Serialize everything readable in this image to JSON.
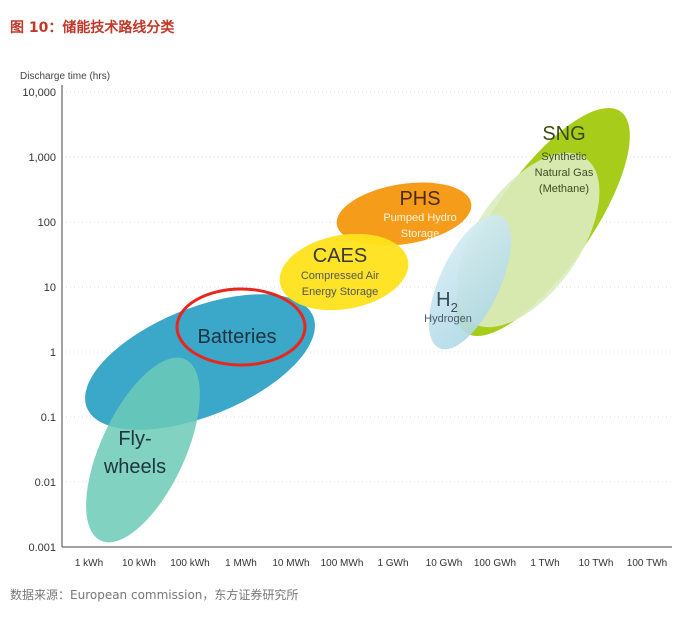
{
  "figure_title": "图 10：储能技术路线分类",
  "source_note": "数据来源：European commission，东方证券研究所",
  "chart_data": {
    "type": "scatter",
    "ylabel": "Discharge time (hrs)",
    "y_scale": "log",
    "x_scale": "log",
    "yticks": [
      "10,000",
      "1,000",
      "100",
      "10",
      "1",
      "0.1",
      "0.01",
      "0.001"
    ],
    "xticks": [
      "1 kWh",
      "10 kWh",
      "100 kWh",
      "1 MWh",
      "10 MWh",
      "100 MWh",
      "1 GWh",
      "10 GWh",
      "100 GWh",
      "1 TWh",
      "10 TWh",
      "100 TWh"
    ],
    "regions": [
      {
        "name": "Batteries",
        "label_lines": [
          "Batteries"
        ],
        "color": "#2a9fc4",
        "opacity": 0.9,
        "energy_kwh_range": [
          1,
          10000
        ],
        "discharge_hrs_range": [
          0.03,
          10
        ],
        "highlighted": true
      },
      {
        "name": "Fly-wheels",
        "label_lines": [
          "Fly-",
          "wheels"
        ],
        "color": "#66c7b5",
        "opacity": 0.85,
        "energy_kwh_range": [
          1,
          100
        ],
        "discharge_hrs_range": [
          0.001,
          1
        ]
      },
      {
        "name": "CAES",
        "label_lines": [
          "Compressed Air",
          "Energy Storage"
        ],
        "color": "#ffe11b",
        "opacity": 0.92,
        "energy_kwh_range": [
          10000,
          1000000
        ],
        "discharge_hrs_range": [
          2,
          30
        ]
      },
      {
        "name": "PHS",
        "label_lines": [
          "Pumped Hydro",
          "Storage"
        ],
        "color": "#f59c1a",
        "opacity": 0.95,
        "energy_kwh_range": [
          100000,
          10000000
        ],
        "discharge_hrs_range": [
          10,
          500
        ]
      },
      {
        "name": "H2",
        "label_lines": [
          "Hydrogen"
        ],
        "color": "#bfe0ea",
        "opacity": 0.9,
        "energy_kwh_range": [
          1000000,
          10000000
        ],
        "discharge_hrs_range": [
          1,
          50
        ]
      },
      {
        "name": "SNG",
        "label_lines": [
          "Synthetic",
          "Natural Gas",
          "(Methane)"
        ],
        "color": "#a8cc1a",
        "opacity": 0.92,
        "energy_kwh_range": [
          1000000,
          10000000000
        ],
        "discharge_hrs_range": [
          2,
          5000
        ]
      }
    ],
    "grid": "dotted-horizontal"
  }
}
